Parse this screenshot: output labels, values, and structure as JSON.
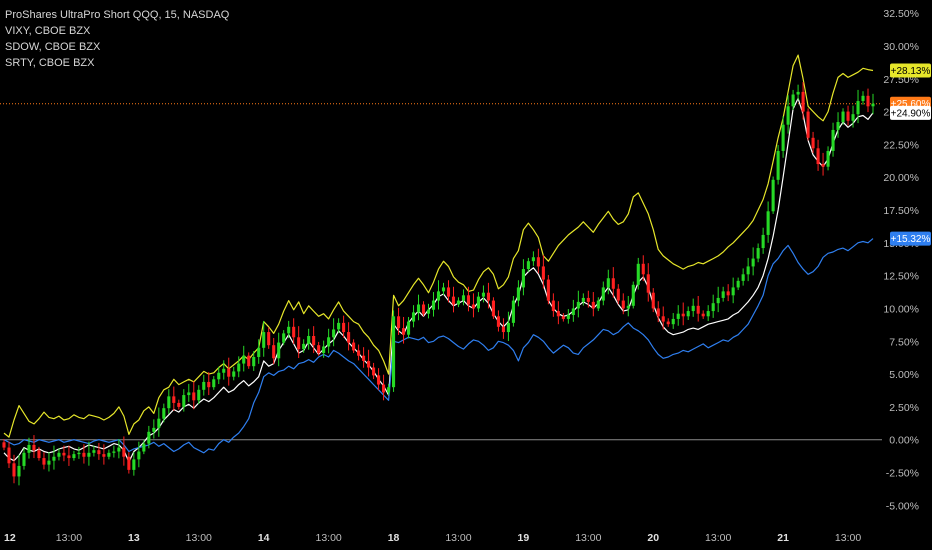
{
  "legend": {
    "main": "ProShares UltraPro Short QQQ, 15, NASDAQ",
    "s1": "VIXY, CBOE BZX",
    "s2": "SDOW, CBOE BZX",
    "s3": "SRTY, CBOE BZX"
  },
  "colors": {
    "background": "#000000",
    "up": "#26d926",
    "down": "#ff2020",
    "vixy": "#e6e62a",
    "sdow": "#ffffff",
    "srty": "#2f7ff0",
    "last_price_line": "#ff7a18",
    "zero_line": "#8a8a8a"
  },
  "chart_data": {
    "type": "line",
    "y_unit": "%",
    "ylim": [
      -6.5,
      33.5
    ],
    "y_ticks": [
      "32.50%",
      "30.00%",
      "27.50%",
      "25.00%",
      "22.50%",
      "20.00%",
      "17.50%",
      "15.00%",
      "12.50%",
      "10.00%",
      "7.50%",
      "5.00%",
      "2.50%",
      "0.00%",
      "-2.50%",
      "-5.00%"
    ],
    "y_tick_values": [
      32.5,
      30,
      27.5,
      25,
      22.5,
      20,
      17.5,
      15,
      12.5,
      10,
      7.5,
      5,
      2.5,
      0,
      -2.5,
      -5
    ],
    "x_ticks": [
      "12",
      "13:00",
      "13",
      "13:00",
      "14",
      "13:00",
      "18",
      "13:00",
      "19",
      "13:00",
      "20",
      "13:00",
      "21",
      "13:00"
    ],
    "x_tick_index": [
      0,
      13,
      26,
      39,
      52,
      65,
      78,
      91,
      104,
      117,
      130,
      143,
      156,
      169
    ],
    "x_tick_day": [
      true,
      false,
      true,
      false,
      true,
      false,
      true,
      false,
      true,
      false,
      true,
      false,
      true,
      false
    ],
    "points_per_day": 26,
    "series": [
      {
        "name": "VIXY, CBOE BZX",
        "key": "vixy",
        "last_label": "+28.13%",
        "values": [
          0.5,
          0.2,
          1.5,
          2.6,
          2.0,
          1.4,
          1.2,
          1.6,
          2.1,
          1.7,
          1.6,
          1.8,
          1.5,
          1.6,
          1.9,
          1.7,
          1.6,
          1.9,
          1.8,
          1.7,
          1.5,
          1.7,
          2.0,
          2.5,
          1.8,
          0.4,
          1.2,
          1.5,
          2.2,
          2.5,
          2.0,
          3.2,
          3.8,
          4.0,
          4.6,
          4.2,
          4.4,
          4.6,
          4.4,
          4.8,
          5.2,
          5.0,
          5.1,
          5.5,
          5.8,
          5.4,
          5.7,
          6.0,
          6.4,
          6.1,
          6.6,
          7.0,
          9.0,
          8.6,
          8.1,
          8.8,
          9.8,
          10.6,
          9.9,
          10.5,
          9.6,
          10.2,
          9.8,
          9.4,
          9.6,
          9.2,
          9.9,
          10.5,
          9.8,
          9.4,
          9.0,
          8.8,
          8.2,
          7.8,
          7.2,
          6.8,
          6.0,
          5.0,
          11.0,
          10.2,
          10.6,
          11.2,
          11.8,
          12.3,
          11.8,
          11.2,
          12.0,
          13.0,
          13.6,
          13.2,
          12.4,
          12.0,
          11.8,
          11.3,
          11.4,
          12.2,
          12.8,
          13.1,
          12.6,
          11.5,
          11.8,
          12.4,
          13.8,
          14.4,
          16.0,
          16.5,
          16.0,
          15.4,
          14.0,
          13.6,
          14.2,
          14.8,
          15.2,
          15.6,
          15.9,
          16.2,
          16.6,
          16.2,
          15.8,
          16.4,
          16.9,
          17.4,
          16.8,
          16.4,
          16.6,
          17.2,
          18.5,
          18.8,
          18.0,
          17.2,
          16.0,
          14.5,
          14.0,
          13.7,
          13.4,
          13.2,
          13.0,
          13.2,
          13.3,
          13.5,
          13.4,
          13.6,
          13.8,
          14.0,
          14.3,
          14.7,
          15.0,
          15.4,
          15.8,
          16.2,
          16.7,
          17.5,
          18.3,
          19.5,
          21.2,
          23.0,
          24.5,
          26.5,
          28.5,
          29.3,
          27.5,
          25.4,
          25.0,
          24.6,
          24.3,
          25.0,
          26.4,
          27.6,
          27.9,
          27.6,
          27.8,
          28.0,
          28.3,
          28.2,
          28.13
        ]
      },
      {
        "name": "SDOW, CBOE BZX",
        "key": "sdow",
        "last_label": "+24.90%",
        "values": [
          -1.0,
          -1.4,
          -1.6,
          -1.2,
          -0.6,
          -0.8,
          -0.9,
          -0.7,
          -0.9,
          -1.0,
          -0.9,
          -0.7,
          -0.6,
          -0.5,
          -0.7,
          -0.8,
          -0.6,
          -0.4,
          -0.5,
          -0.6,
          -0.7,
          -0.5,
          -0.3,
          -0.4,
          -0.8,
          -1.7,
          -0.9,
          -0.6,
          -0.2,
          0.3,
          0.5,
          0.9,
          1.5,
          1.9,
          2.3,
          2.1,
          2.5,
          2.7,
          2.4,
          2.8,
          3.1,
          2.9,
          3.2,
          3.6,
          4.0,
          3.6,
          3.8,
          4.2,
          4.5,
          4.1,
          4.4,
          4.8,
          6.0,
          5.6,
          5.8,
          6.8,
          7.4,
          8.0,
          7.3,
          6.6,
          6.8,
          7.5,
          7.0,
          6.5,
          6.9,
          7.3,
          7.6,
          8.3,
          7.9,
          7.4,
          7.0,
          6.6,
          6.1,
          5.7,
          5.2,
          4.6,
          4.1,
          3.4,
          8.8,
          8.3,
          8.0,
          8.9,
          9.4,
          9.8,
          9.4,
          9.9,
          10.3,
          10.9,
          11.1,
          10.6,
          10.2,
          10.4,
          10.6,
          10.2,
          10.0,
          10.5,
          10.8,
          10.4,
          9.6,
          9.0,
          8.6,
          9.0,
          10.2,
          11.0,
          12.4,
          12.8,
          13.1,
          12.6,
          11.8,
          10.6,
          10.0,
          9.6,
          9.4,
          9.5,
          9.8,
          10.2,
          10.5,
          10.3,
          10.0,
          10.4,
          11.1,
          11.6,
          11.0,
          10.3,
          9.8,
          9.9,
          11.0,
          12.0,
          12.4,
          11.6,
          10.3,
          9.3,
          8.6,
          8.2,
          8.0,
          8.1,
          8.2,
          8.4,
          8.5,
          8.4,
          8.6,
          8.8,
          8.9,
          9.0,
          9.1,
          9.2,
          9.5,
          9.7,
          10.1,
          10.5,
          11.0,
          11.6,
          12.5,
          13.8,
          15.5,
          17.5,
          20.0,
          22.6,
          25.2,
          26.0,
          24.8,
          22.8,
          21.7,
          21.2,
          20.8,
          21.4,
          22.6,
          23.6,
          24.2,
          23.8,
          24.1,
          24.6,
          24.7,
          24.4,
          24.9
        ]
      },
      {
        "name": "SRTY, CBOE BZX",
        "key": "srty",
        "last_label": "+15.32%",
        "values": [
          0.0,
          -0.2,
          -0.4,
          -0.3,
          0.0,
          -0.1,
          -0.2,
          0.0,
          -0.1,
          -0.2,
          -0.1,
          0.0,
          -0.2,
          -0.1,
          0.0,
          -0.1,
          -0.2,
          -0.3,
          -0.1,
          0.0,
          -0.1,
          -0.2,
          -0.1,
          0.0,
          -0.4,
          -0.9,
          -0.7,
          -0.6,
          -0.5,
          -0.4,
          -0.2,
          -0.5,
          -0.3,
          -0.6,
          -0.9,
          -0.7,
          -0.4,
          -0.2,
          -0.6,
          -0.8,
          -1.0,
          -0.7,
          -0.8,
          -0.3,
          0.0,
          -0.2,
          0.2,
          0.5,
          1.0,
          1.6,
          2.8,
          3.6,
          4.8,
          5.1,
          4.9,
          5.2,
          5.3,
          5.6,
          5.4,
          5.8,
          5.9,
          6.1,
          5.9,
          6.3,
          6.5,
          6.3,
          6.8,
          6.6,
          6.3,
          6.0,
          5.8,
          5.4,
          5.0,
          4.6,
          4.2,
          3.8,
          3.4,
          3.0,
          7.5,
          7.4,
          7.6,
          7.8,
          7.7,
          7.6,
          7.8,
          7.4,
          7.5,
          7.8,
          7.9,
          7.7,
          7.4,
          7.1,
          6.9,
          7.3,
          7.6,
          7.5,
          7.2,
          6.8,
          7.0,
          7.5,
          7.4,
          7.2,
          6.8,
          6.0,
          7.0,
          7.4,
          8.0,
          7.8,
          7.5,
          7.0,
          6.6,
          6.9,
          7.2,
          7.0,
          6.6,
          6.5,
          7.0,
          7.3,
          7.6,
          8.0,
          8.4,
          8.3,
          8.0,
          8.2,
          8.6,
          8.9,
          8.5,
          8.3,
          8.0,
          7.6,
          7.0,
          6.5,
          6.2,
          6.3,
          6.5,
          6.6,
          6.8,
          6.7,
          6.9,
          7.1,
          7.3,
          7.0,
          7.2,
          7.4,
          7.6,
          7.5,
          7.8,
          8.0,
          8.4,
          8.8,
          9.5,
          10.2,
          11.0,
          12.5,
          13.4,
          13.8,
          14.4,
          14.8,
          14.2,
          13.5,
          13.0,
          12.6,
          12.8,
          13.2,
          13.9,
          14.2,
          14.3,
          14.5,
          14.6,
          14.4,
          14.7,
          15.0,
          15.1,
          15.0,
          15.32
        ]
      }
    ],
    "candles": {
      "name": "ProShares UltraPro Short QQQ, 15, NASDAQ",
      "last_label": "+25.60%",
      "last_value": 25.6,
      "closes": [
        -0.6,
        -1.8,
        -2.8,
        -2.0,
        -1.0,
        -0.4,
        -0.8,
        -1.4,
        -1.9,
        -1.6,
        -1.3,
        -1.0,
        -1.2,
        -1.4,
        -1.1,
        -1.0,
        -1.3,
        -1.0,
        -0.8,
        -1.1,
        -1.3,
        -1.0,
        -0.9,
        -0.6,
        -1.3,
        -2.3,
        -1.5,
        -0.9,
        -0.3,
        0.6,
        0.9,
        1.6,
        2.4,
        3.3,
        2.8,
        2.5,
        3.4,
        3.6,
        3.0,
        3.8,
        4.4,
        4.0,
        4.6,
        5.1,
        5.4,
        4.8,
        5.2,
        5.8,
        6.4,
        5.6,
        6.3,
        7.0,
        8.2,
        7.2,
        6.2,
        7.4,
        8.1,
        8.6,
        7.8,
        6.9,
        7.3,
        7.9,
        7.2,
        6.6,
        7.1,
        7.8,
        8.4,
        8.9,
        8.2,
        7.4,
        6.8,
        6.4,
        6.0,
        5.5,
        4.9,
        4.2,
        3.6,
        4.0,
        9.4,
        8.5,
        8.0,
        9.0,
        9.7,
        10.3,
        9.6,
        9.9,
        10.6,
        11.3,
        11.6,
        10.9,
        10.3,
        10.6,
        11.0,
        10.3,
        10.0,
        10.9,
        11.2,
        10.6,
        9.4,
        8.6,
        8.2,
        8.9,
        10.6,
        11.6,
        13.0,
        13.6,
        13.9,
        13.2,
        12.2,
        10.6,
        9.8,
        9.4,
        9.2,
        9.5,
        10.0,
        10.5,
        10.8,
        10.5,
        10.0,
        10.6,
        11.6,
        12.3,
        11.5,
        10.6,
        10.0,
        10.2,
        11.8,
        13.4,
        12.6,
        11.2,
        10.0,
        9.4,
        9.0,
        8.8,
        9.2,
        9.6,
        9.4,
        9.8,
        10.2,
        9.6,
        9.4,
        9.8,
        10.4,
        10.8,
        11.3,
        11.0,
        11.6,
        12.1,
        12.6,
        13.2,
        13.8,
        14.6,
        15.6,
        17.4,
        19.8,
        22.0,
        24.0,
        25.4,
        26.3,
        26.5,
        25.0,
        23.0,
        22.2,
        21.0,
        20.8,
        22.0,
        23.6,
        24.2,
        25.0,
        24.3,
        24.8,
        25.8,
        26.2,
        25.4,
        25.6
      ]
    }
  }
}
